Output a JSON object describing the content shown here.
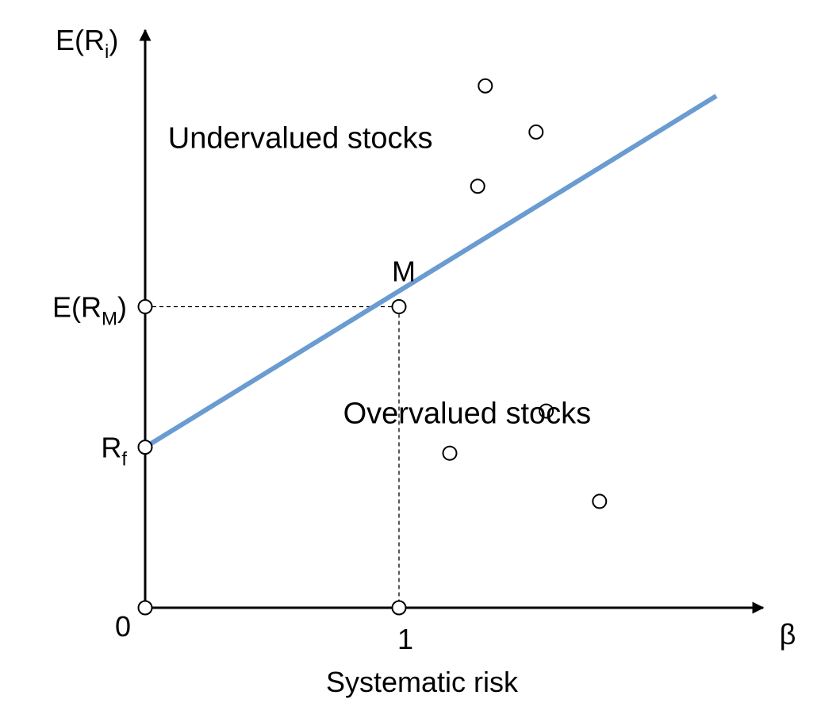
{
  "chart_data": {
    "type": "line",
    "title": "",
    "ylabel": {
      "base": "E(R",
      "sub": "i",
      "close": ")"
    },
    "xlabel_symbol": "β",
    "xlabel": "Systematic risk",
    "x_ticks": [
      "0",
      "1"
    ],
    "y_ticks": [
      {
        "id": "erm",
        "base": "E(R",
        "sub": "M",
        "close": ")",
        "value": 1.0
      },
      {
        "id": "rf",
        "base": "R",
        "sub": "f",
        "close": "",
        "value": 0.3
      }
    ],
    "xlim": [
      0,
      2.25
    ],
    "ylim": [
      -0.5,
      2.35
    ],
    "series": [
      {
        "type": "line",
        "color": "#6A9BD1",
        "x": [
          0,
          2.25
        ],
        "y": [
          0.3,
          2.05
        ]
      }
    ],
    "points": [
      {
        "group": "origin",
        "x": 0,
        "y": -0.5
      },
      {
        "group": "axis-marker",
        "x": 1,
        "y": -0.5
      },
      {
        "group": "axis-marker",
        "x": 0,
        "y": 1.0
      },
      {
        "group": "axis-marker",
        "x": 0,
        "y": 0.3
      },
      {
        "group": "market",
        "label": "M",
        "x": 1,
        "y": 1.0
      },
      {
        "group": "undervalued",
        "x": 1.34,
        "y": 2.1
      },
      {
        "group": "undervalued",
        "x": 1.54,
        "y": 1.87
      },
      {
        "group": "undervalued",
        "x": 1.31,
        "y": 1.6
      },
      {
        "group": "overvalued",
        "x": 1.58,
        "y": 0.48
      },
      {
        "group": "overvalued",
        "x": 1.2,
        "y": 0.27
      },
      {
        "group": "overvalued",
        "x": 1.79,
        "y": 0.03
      }
    ],
    "guides": [
      {
        "from": [
          0,
          1.0
        ],
        "to": [
          1,
          1.0
        ],
        "style": "dashed"
      },
      {
        "from": [
          1,
          1.0
        ],
        "to": [
          1,
          -0.5
        ],
        "style": "dashed"
      }
    ],
    "annotations": [
      {
        "text": "Undervalued stocks",
        "x": 0.09,
        "y": 1.79
      },
      {
        "text": "Overvalued stocks",
        "x": 0.78,
        "y": 0.42
      }
    ]
  }
}
